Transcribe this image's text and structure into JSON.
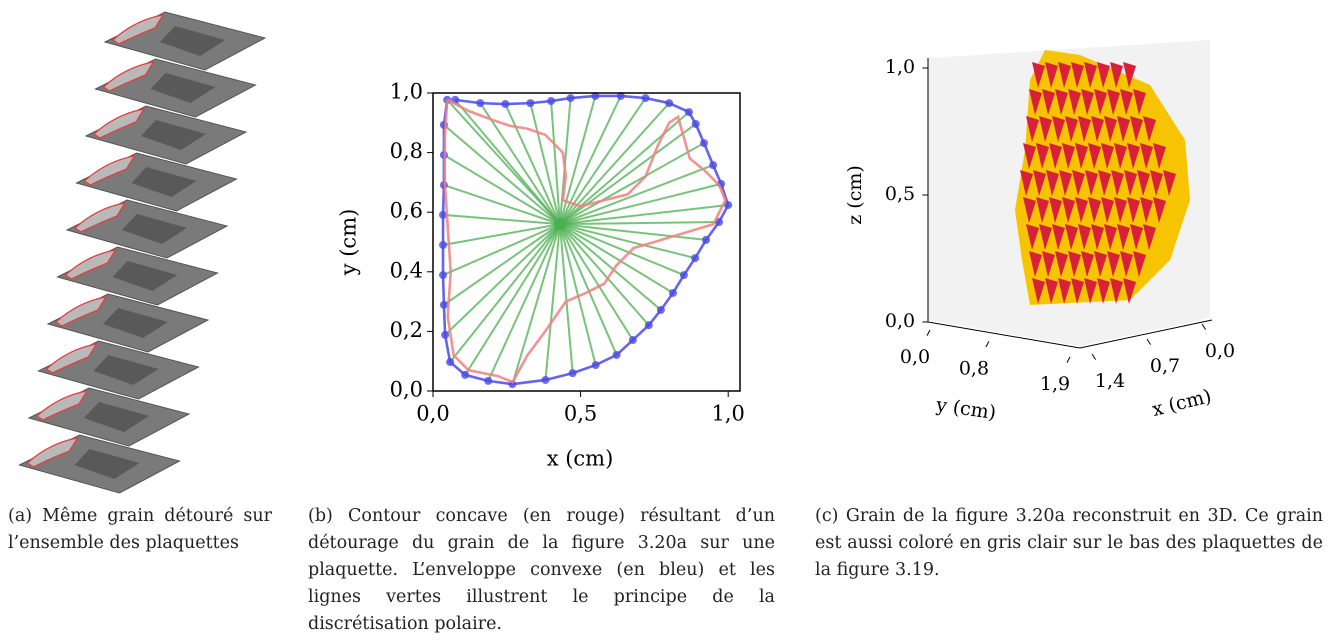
{
  "panels": [
    {
      "caption": "(a) Même grain détouré sur l’ensemble des plaquettes"
    },
    {
      "caption": "(b) Contour concave (en rouge) résultant d’un détourage du grain de la figure 3.20a sur une plaquette. L’enveloppe convexe (en bleu) et les lignes vertes illustrent le principe de la discrétisation polaire."
    },
    {
      "caption": "(c) Grain de la figure  3.20a reconstruit en 3D. Ce grain est aussi coloré en gris clair sur le bas des plaquettes de la figure 3.19."
    }
  ],
  "chart_data": {
    "type": "line",
    "xlabel": "x (cm)",
    "ylabel": "y (cm)",
    "xlim": [
      0,
      1.04
    ],
    "ylim": [
      0,
      1
    ],
    "xticks": [
      {
        "value": 0,
        "label": "0,0"
      },
      {
        "value": 0.5,
        "label": "0,5"
      },
      {
        "value": 1,
        "label": "1,0"
      }
    ],
    "yticks": [
      {
        "value": 0,
        "label": "0,0"
      },
      {
        "value": 0.2,
        "label": "0,2"
      },
      {
        "value": 0.4,
        "label": "0,4"
      },
      {
        "value": 0.6,
        "label": "0,6"
      },
      {
        "value": 0.8,
        "label": "0,8"
      },
      {
        "value": 1,
        "label": "1,0"
      }
    ],
    "center": [
      0.43,
      0.56
    ],
    "spoke_color": "#4caf50",
    "series": [
      {
        "color": "#4a4ae6",
        "markers": true,
        "x": [
          0.075,
          0.16,
          0.245,
          0.33,
          0.4,
          0.466,
          0.55,
          0.636,
          0.72,
          0.8,
          0.867,
          0.89,
          0.918,
          0.949,
          0.976,
          1.0,
          0.969,
          0.925,
          0.888,
          0.85,
          0.813,
          0.772,
          0.731,
          0.677,
          0.622,
          0.551,
          0.473,
          0.381,
          0.269,
          0.187,
          0.109,
          0.058,
          0.041,
          0.037,
          0.034,
          0.034,
          0.034,
          0.037,
          0.037,
          0.037,
          0.048
        ],
        "values": [
          0.977,
          0.966,
          0.963,
          0.966,
          0.973,
          0.983,
          0.99,
          0.99,
          0.983,
          0.966,
          0.936,
          0.896,
          0.832,
          0.758,
          0.695,
          0.624,
          0.567,
          0.507,
          0.446,
          0.389,
          0.329,
          0.272,
          0.221,
          0.171,
          0.121,
          0.087,
          0.06,
          0.037,
          0.023,
          0.034,
          0.054,
          0.097,
          0.188,
          0.289,
          0.389,
          0.49,
          0.591,
          0.691,
          0.792,
          0.893,
          0.977
        ]
      },
      {
        "color": "#f08080",
        "markers": false,
        "x": [
          0.048,
          0.12,
          0.2,
          0.26,
          0.32,
          0.38,
          0.44,
          0.45,
          0.44,
          0.5,
          0.58,
          0.66,
          0.72,
          0.76,
          0.8,
          0.83,
          0.85,
          0.87,
          0.92,
          0.97,
          0.99,
          0.95,
          0.85,
          0.75,
          0.68,
          0.62,
          0.58,
          0.52,
          0.45,
          0.38,
          0.32,
          0.27,
          0.22,
          0.12,
          0.07,
          0.05,
          0.06,
          0.05,
          0.04,
          0.04,
          0.048
        ],
        "values": [
          0.977,
          0.94,
          0.91,
          0.89,
          0.88,
          0.86,
          0.8,
          0.72,
          0.64,
          0.62,
          0.64,
          0.66,
          0.72,
          0.82,
          0.9,
          0.92,
          0.85,
          0.78,
          0.74,
          0.69,
          0.64,
          0.56,
          0.53,
          0.5,
          0.48,
          0.42,
          0.36,
          0.33,
          0.3,
          0.2,
          0.12,
          0.03,
          0.05,
          0.07,
          0.12,
          0.25,
          0.4,
          0.55,
          0.7,
          0.85,
          0.977
        ]
      }
    ]
  },
  "panel_c": {
    "zlabel": "z (cm)",
    "ylabel": "y (cm)",
    "xlabel": "x (cm)",
    "zticks": [
      {
        "value": 0,
        "label": "0,0"
      },
      {
        "value": 0.5,
        "label": "0,5"
      },
      {
        "value": 1,
        "label": "1,0"
      }
    ],
    "yticks": [
      {
        "value": 0,
        "label": "0,0"
      },
      {
        "value": 0.8,
        "label": "0,8"
      },
      {
        "value": 1.9,
        "label": "1,9"
      }
    ],
    "xticks": [
      {
        "value": 1.4,
        "label": "1,4"
      },
      {
        "value": 0.7,
        "label": "0,7"
      },
      {
        "value": 0,
        "label": "0,0"
      }
    ]
  }
}
